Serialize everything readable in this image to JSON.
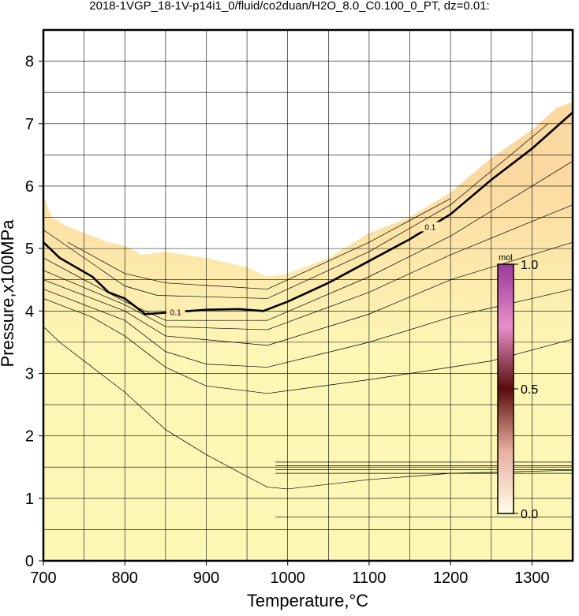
{
  "chart_data": {
    "type": "contour",
    "title": "2018-1VGP_18-1V-p14i1_0/fluid/co2duan/H2O_8.0_C0.100_0_PT, dz=0.01:",
    "x_label": "Temperature,°C",
    "y_label": "Pressure,x100MPa",
    "xlim": [
      700,
      1350
    ],
    "ylim": [
      0,
      8.5
    ],
    "xticks": [
      700,
      800,
      900,
      1000,
      1100,
      1200,
      1300
    ],
    "yticks": [
      0,
      1,
      2,
      3,
      4,
      5,
      6,
      7,
      8
    ],
    "xgrid": [
      700,
      750,
      800,
      850,
      900,
      950,
      1000,
      1050,
      1100,
      1150,
      1200,
      1250,
      1300
    ],
    "ygrid": [
      0.5,
      1,
      1.5,
      2,
      2.5,
      3,
      3.5,
      4,
      4.5,
      5,
      5.5,
      6,
      6.5,
      7,
      7.5,
      8
    ],
    "grid": true,
    "region": {
      "color_top": "#fbd9a0",
      "color_bottom": "#fdf7b6",
      "x": [
        700,
        710,
        730,
        760,
        780,
        800,
        820,
        850,
        900,
        950,
        975,
        1000,
        1050,
        1100,
        1150,
        1200,
        1250,
        1300,
        1330,
        1350
      ],
      "y": [
        5.85,
        5.5,
        5.35,
        5.2,
        5.1,
        5.05,
        4.9,
        4.95,
        4.85,
        4.7,
        4.55,
        4.6,
        4.85,
        5.25,
        5.5,
        5.9,
        6.45,
        6.9,
        7.25,
        7.35
      ]
    },
    "contours": [
      {
        "x": [
          700,
          720,
          760,
          780,
          800,
          825,
          900,
          940,
          970,
          1000,
          1050,
          1100,
          1150,
          1200,
          1250,
          1300,
          1350
        ],
        "y": [
          5.1,
          4.85,
          4.55,
          4.3,
          4.2,
          3.95,
          4.02,
          4.03,
          4.0,
          4.15,
          4.45,
          4.8,
          5.15,
          5.55,
          6.1,
          6.6,
          7.18
        ],
        "thick": true,
        "label": "0.1",
        "label_at": [
          5,
          12
        ]
      },
      {
        "x": [
          700,
          720,
          760,
          800,
          850,
          900,
          950,
          975,
          1000,
          1100,
          1200,
          1350
        ],
        "y": [
          3.75,
          3.5,
          3.1,
          2.7,
          2.1,
          1.7,
          1.35,
          1.18,
          1.15,
          1.3,
          1.4,
          1.45
        ]
      },
      {
        "x": [
          700,
          760,
          800,
          850,
          900,
          975,
          1100,
          1250,
          1350
        ],
        "y": [
          4.2,
          3.9,
          3.6,
          3.1,
          2.8,
          2.68,
          2.9,
          3.2,
          3.55
        ]
      },
      {
        "x": [
          700,
          800,
          850,
          900,
          975,
          1100,
          1200,
          1350
        ],
        "y": [
          4.35,
          3.85,
          3.35,
          3.15,
          3.1,
          3.5,
          3.9,
          4.35
        ]
      },
      {
        "x": [
          700,
          800,
          850,
          975,
          1100,
          1200,
          1350
        ],
        "y": [
          4.5,
          4.0,
          3.6,
          3.45,
          3.95,
          4.5,
          5.1
        ]
      },
      {
        "x": [
          700,
          800,
          850,
          975,
          1100,
          1200,
          1350
        ],
        "y": [
          4.65,
          4.1,
          3.75,
          3.7,
          4.3,
          4.9,
          5.7
        ]
      },
      {
        "x": [
          700,
          800,
          850,
          975,
          1100,
          1200,
          1350
        ],
        "y": [
          4.85,
          4.15,
          3.85,
          3.85,
          4.55,
          5.2,
          6.4
        ]
      },
      {
        "x": [
          700,
          800,
          840,
          975,
          1100,
          1200,
          1320
        ],
        "y": [
          5.3,
          4.4,
          4.25,
          4.2,
          4.95,
          5.7,
          7.0
        ]
      },
      {
        "x": [
          730,
          800,
          850,
          975,
          1100,
          1200
        ],
        "y": [
          5.1,
          4.6,
          4.45,
          4.35,
          5.1,
          5.8
        ]
      },
      {
        "x": [
          985,
          1350
        ],
        "y": [
          1.58,
          1.58
        ]
      },
      {
        "x": [
          985,
          1350
        ],
        "y": [
          1.52,
          1.52
        ]
      },
      {
        "x": [
          985,
          1350
        ],
        "y": [
          1.46,
          1.46
        ]
      },
      {
        "x": [
          985,
          1350
        ],
        "y": [
          1.4,
          1.4
        ]
      },
      {
        "x": [
          985,
          1350
        ],
        "y": [
          0.7,
          0.7
        ]
      }
    ],
    "colorbar": {
      "label": "mol",
      "lim": [
        0,
        1
      ],
      "ticks": [
        {
          "value": 0,
          "label": "0.0"
        },
        {
          "value": 0.5,
          "label": "0.5"
        },
        {
          "value": 1,
          "label": "1.0"
        }
      ],
      "colors": [
        "#fffde8",
        "#e8b0a0",
        "#5a0c0c",
        "#e890c8",
        "#9a3a9a"
      ]
    }
  }
}
